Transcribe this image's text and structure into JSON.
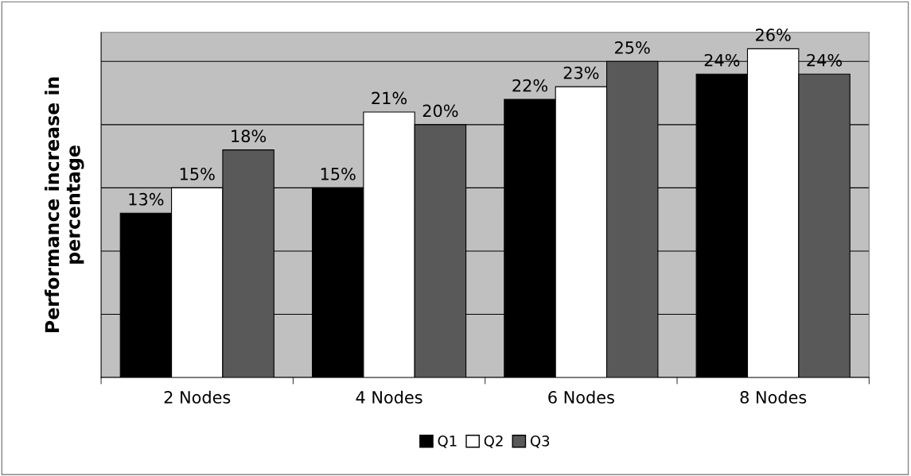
{
  "chart_data": {
    "type": "bar",
    "ylabel": "Performance increase in\npercentage",
    "categories": [
      "2 Nodes",
      "4 Nodes",
      "6 Nodes",
      "8 Nodes"
    ],
    "series": [
      {
        "name": "Q1",
        "color": "#000000",
        "values": [
          13,
          15,
          22,
          24
        ],
        "value_labels": [
          "13%",
          "15%",
          "22%",
          "24%"
        ]
      },
      {
        "name": "Q2",
        "color": "#ffffff",
        "values": [
          15,
          21,
          23,
          26
        ],
        "value_labels": [
          "15%",
          "21%",
          "23%",
          "26%"
        ]
      },
      {
        "name": "Q3",
        "color": "#595959",
        "values": [
          18,
          20,
          25,
          24
        ],
        "value_labels": [
          "18%",
          "20%",
          "25%",
          "24%"
        ]
      }
    ],
    "tick_labels": "x",
    "grid": "y",
    "legend": "bottom"
  }
}
